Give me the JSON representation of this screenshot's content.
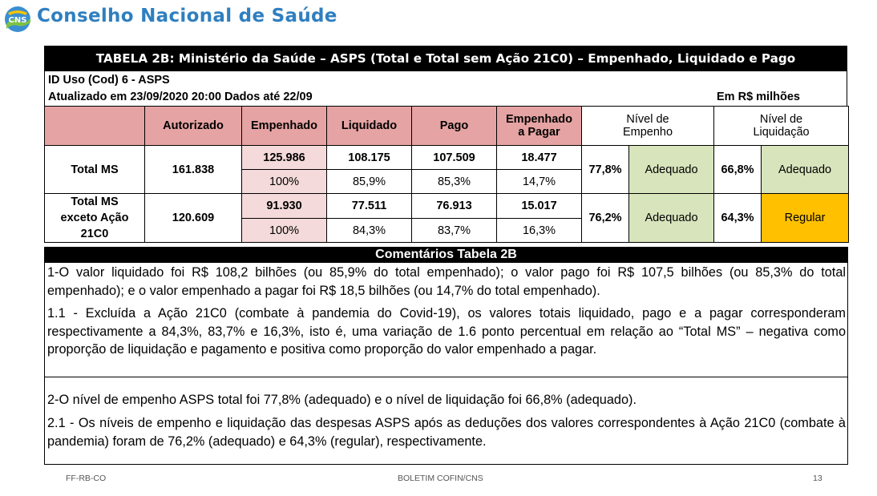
{
  "brand": {
    "logo_text": "CNS",
    "name": "Conselho Nacional de Saúde"
  },
  "title": "TABELA 2B: Ministério da Saúde – ASPS (Total e Total sem Ação 21C0) – Empenhado, Liquidado e Pago",
  "meta": {
    "id_uso": "ID Uso (Cod) 6 - ASPS",
    "updated": "Atualizado em 23/09/2020 20:00 Dados até 22/09",
    "unit": "Em R$ milhões"
  },
  "table": {
    "headers": {
      "autorizado": "Autorizado",
      "empenhado": "Empenhado",
      "liquidado": "Liquidado",
      "pago": "Pago",
      "emp_pagar_1": "Empenhado",
      "emp_pagar_2": "a Pagar",
      "nivel_emp_1": "Nível de",
      "nivel_emp_2": "Empenho",
      "nivel_liq_1": "Nível de",
      "nivel_liq_2": "Liquidação"
    },
    "rows": [
      {
        "label": "Total MS",
        "autorizado": "161.838",
        "values": [
          "125.986",
          "108.175",
          "107.509",
          "18.477"
        ],
        "percents": [
          "100%",
          "85,9%",
          "85,3%",
          "14,7%"
        ],
        "nivel_emp": "77,8%",
        "status_emp": "Adequado",
        "nivel_liq": "66,8%",
        "status_liq": "Adequado"
      },
      {
        "label_1": "Total MS",
        "label_2": "exceto Ação",
        "label_3": "21C0",
        "autorizado": "120.609",
        "values": [
          "91.930",
          "77.511",
          "76.913",
          "15.017"
        ],
        "percents": [
          "100%",
          "84,3%",
          "83,7%",
          "16,3%"
        ],
        "nivel_emp": "76,2%",
        "status_emp": "Adequado",
        "nivel_liq": "64,3%",
        "status_liq": "Regular"
      }
    ]
  },
  "comments": {
    "title": "Comentários Tabela 2B",
    "p1": "1-O valor liquidado foi R$ 108,2 bilhões (ou 85,9% do total empenhado); o valor pago foi R$ 107,5 bilhões (ou 85,3% do total empenhado); e o valor empenhado a pagar foi R$ 18,5 bilhões (ou 14,7% do total empenhado).",
    "p2": "1.1 - Excluída a Ação 21C0 (combate à pandemia do Covid-19), os valores totais liquidado, pago e a pagar corresponderam respectivamente a 84,3%, 83,7% e 16,3%, isto é, uma variação de 1.6 ponto percentual em relação ao “Total MS” – negativa como proporção de liquidação e pagamento e positiva como proporção do valor empenhado a pagar.",
    "p3": "2-O nível de empenho ASPS total foi 77,8% (adequado) e o nível de liquidação foi 66,8% (adequado).",
    "p4": "2.1 - Os níveis de empenho e liquidação das despesas ASPS após as deduções dos valores correspondentes à Ação 21C0 (combate à pandemia) foram de 76,2% (adequado) e 64,3% (regular), respectivamente."
  },
  "footer": {
    "left": "FF-RB-CO",
    "center": "BOLETIM COFIN/CNS",
    "page": "13"
  },
  "colors": {
    "brand_blue": "#2f7fc0",
    "header_pink": "#e6a3a3",
    "light_pink": "#f4dada",
    "adequado_green": "#d8e4bc",
    "regular_amber": "#ffc000"
  }
}
